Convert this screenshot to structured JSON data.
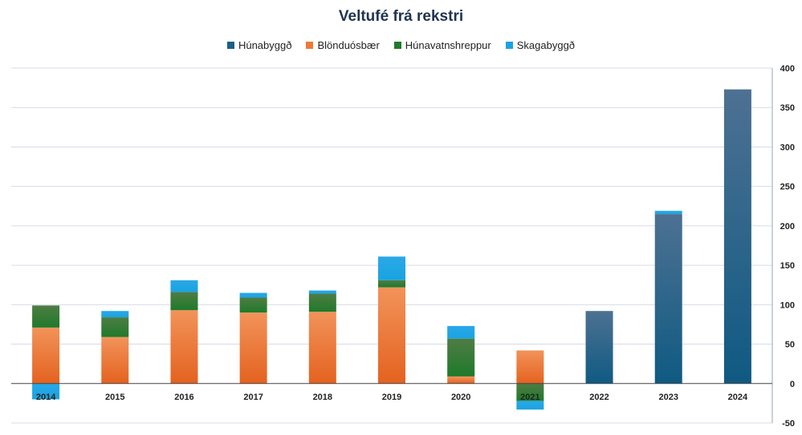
{
  "chart_data": {
    "type": "bar",
    "stacked": true,
    "title": "Veltufé frá rekstri",
    "categories": [
      "2014",
      "2015",
      "2016",
      "2017",
      "2018",
      "2019",
      "2020",
      "2021",
      "2022",
      "2023",
      "2024"
    ],
    "series": [
      {
        "name": "Húnabyggð",
        "color": "#1d5f86",
        "values": [
          0,
          0,
          0,
          0,
          0,
          0,
          0,
          0,
          92,
          215,
          373
        ]
      },
      {
        "name": "Blönduósbær",
        "color": "#f07a33",
        "values": [
          71,
          59,
          93,
          90,
          91,
          122,
          9,
          42,
          0,
          0,
          0
        ]
      },
      {
        "name": "Húnavatnshreppur",
        "color": "#1f7a2a",
        "values": [
          28,
          25,
          23,
          19,
          23,
          9,
          48,
          -22,
          0,
          0,
          0
        ]
      },
      {
        "name": "Skagabyggð",
        "color": "#1aa3e0",
        "values": [
          -20,
          8,
          15,
          6,
          4,
          30,
          16,
          -11,
          0,
          4,
          0
        ]
      }
    ],
    "ylim": [
      -50,
      400
    ],
    "yticks": [
      -50,
      0,
      50,
      100,
      150,
      200,
      250,
      300,
      350,
      400
    ],
    "grid": true,
    "y_axis_side": "right",
    "legend_position": "top"
  }
}
